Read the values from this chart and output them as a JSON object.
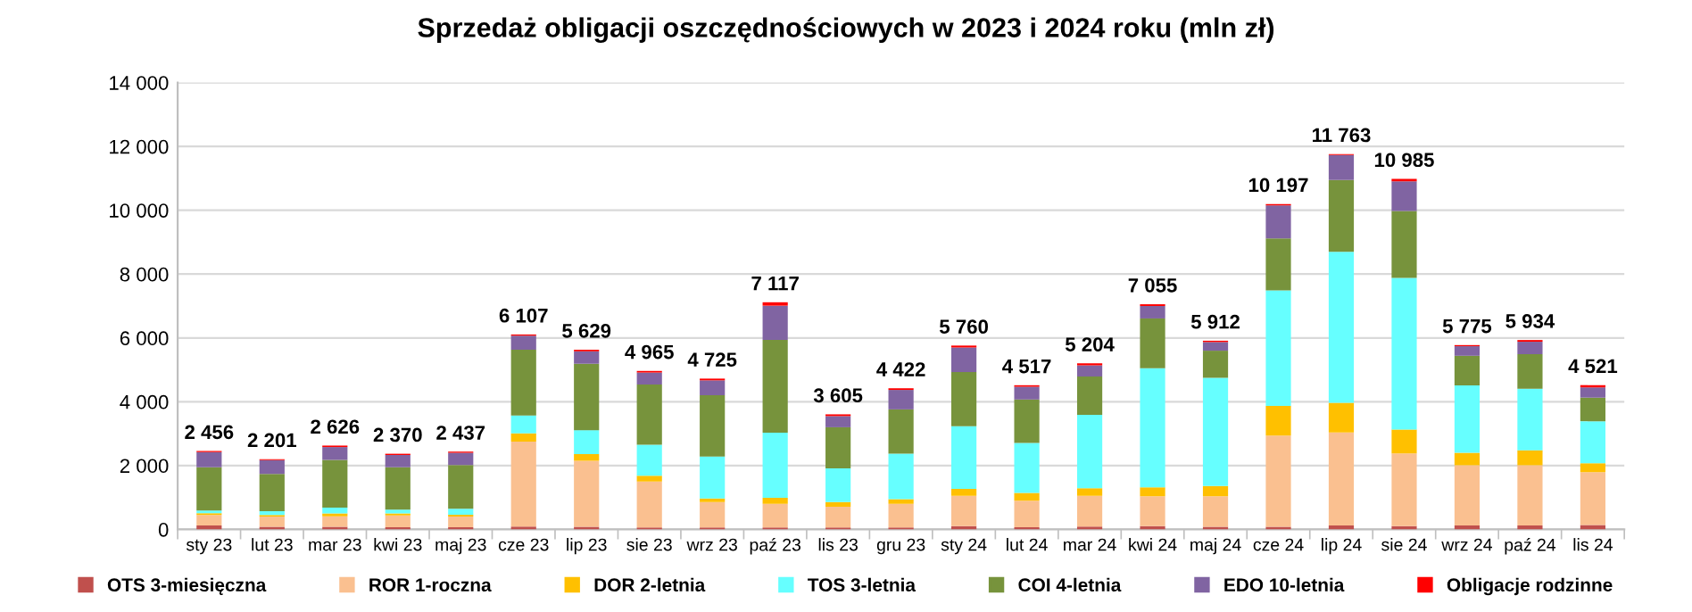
{
  "chart_data": {
    "type": "bar",
    "stacked": true,
    "title": "Sprzedaż obligacji oszczędnościowych w 2023 i 2024 roku (mln zł)",
    "categories": [
      "sty 23",
      "lut 23",
      "mar 23",
      "kwi 23",
      "maj 23",
      "cze 23",
      "lip 23",
      "sie 23",
      "wrz 23",
      "paź 23",
      "lis 23",
      "gru 23",
      "sty 24",
      "lut 24",
      "mar 24",
      "kwi 24",
      "maj 24",
      "cze 24",
      "lip 24",
      "sie 24",
      "wrz 24",
      "paź 24",
      "lis 24"
    ],
    "series": [
      {
        "name": "OTS 3-miesięczna",
        "color": "#c0504d",
        "values": [
          120,
          80,
          80,
          70,
          70,
          90,
          80,
          60,
          60,
          60,
          60,
          60,
          100,
          70,
          90,
          100,
          80,
          80,
          120,
          100,
          120,
          120,
          140
        ]
      },
      {
        "name": "ROR 1-roczna",
        "color": "#fac090",
        "values": [
          330,
          320,
          330,
          370,
          330,
          2660,
          2070,
          1440,
          800,
          740,
          650,
          740,
          950,
          830,
          960,
          940,
          960,
          2860,
          2920,
          2280,
          1890,
          1890,
          1650
        ]
      },
      {
        "name": "DOR 2-letnia",
        "color": "#ffc000",
        "values": [
          60,
          50,
          90,
          60,
          60,
          260,
          210,
          180,
          110,
          190,
          150,
          150,
          220,
          240,
          240,
          280,
          320,
          930,
          930,
          750,
          390,
          470,
          280
        ]
      },
      {
        "name": "TOS 3-letnia",
        "color": "#66ffff",
        "values": [
          80,
          120,
          180,
          120,
          190,
          560,
          750,
          970,
          1310,
          2040,
          1050,
          1420,
          1960,
          1570,
          2300,
          3730,
          3390,
          3620,
          4730,
          4750,
          2110,
          1930,
          1320
        ]
      },
      {
        "name": "COI 4-letnia",
        "color": "#77933c",
        "values": [
          1360,
          1170,
          1500,
          1330,
          1370,
          2060,
          2080,
          1890,
          1925,
          2910,
          1290,
          1390,
          1700,
          1360,
          1200,
          1560,
          850,
          1630,
          2250,
          2100,
          930,
          1080,
          740
        ]
      },
      {
        "name": "EDO 10-letnia",
        "color": "#8064a2",
        "values": [
          470,
          430,
          400,
          380,
          380,
          440,
          390,
          375,
          465,
          1070,
          350,
          610,
          770,
          400,
          350,
          390,
          270,
          1030,
          780,
          930,
          300,
          390,
          320
        ]
      },
      {
        "name": "Obligacje rodzinne",
        "color": "#ff0000",
        "values": [
          36,
          31,
          46,
          40,
          37,
          37,
          49,
          50,
          55,
          107,
          55,
          52,
          60,
          47,
          64,
          55,
          42,
          47,
          33,
          75,
          35,
          54,
          71
        ]
      }
    ],
    "totals": [
      "2 456",
      "2 201",
      "2 626",
      "2 370",
      "2 437",
      "6 107",
      "5 629",
      "4 965",
      "4 725",
      "7 117",
      "3 605",
      "4 422",
      "5 760",
      "4 517",
      "5 204",
      "7 055",
      "5 912",
      "10 197",
      "11 763",
      "10 985",
      "5 775",
      "5 934",
      "4 521"
    ],
    "ylim": [
      0,
      14000
    ],
    "yticks": [
      0,
      {
        "value": 2000,
        "label": "2 000"
      },
      {
        "value": 4000,
        "label": "4 000"
      },
      {
        "value": 6000,
        "label": "6 000"
      },
      {
        "value": 8000,
        "label": "8 000"
      },
      {
        "value": 10000,
        "label": "10 000"
      },
      {
        "value": 12000,
        "label": "12 000"
      },
      {
        "value": 14000,
        "label": "14 000"
      }
    ],
    "grid": "y",
    "legend": "bottom"
  }
}
